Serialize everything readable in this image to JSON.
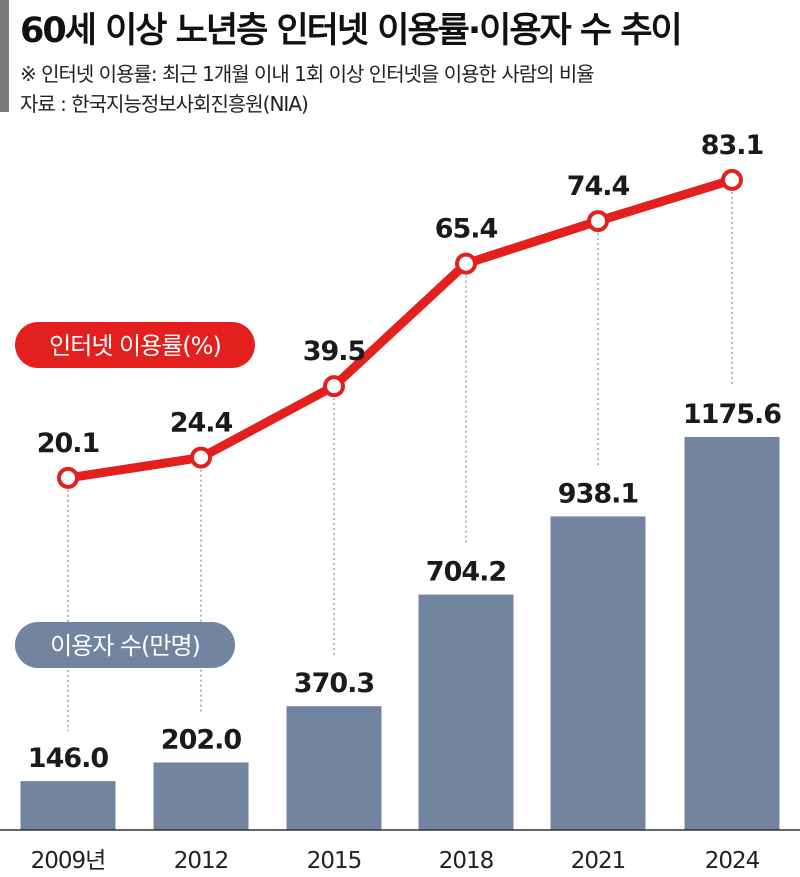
{
  "header": {
    "title": "60세 이상 노년층 인터넷 이용률·이용자 수 추이",
    "note": "※ 인터넷 이용률: 최근 1개월 이내 1회 이상 인터넷을 이용한 사람의 비율",
    "source": "자료 : 한국지능정보사회진흥원(NIA)"
  },
  "chart_data": {
    "type": "bar+line",
    "categories": [
      "2009년",
      "2012",
      "2015",
      "2018",
      "2021",
      "2024"
    ],
    "series": [
      {
        "name": "인터넷 이용률(%)",
        "type": "line",
        "color": "#e4201f",
        "values": [
          20.1,
          24.4,
          39.5,
          65.4,
          74.4,
          83.1
        ],
        "labels": [
          "20.1",
          "24.4",
          "39.5",
          "65.4",
          "74.4",
          "83.1"
        ]
      },
      {
        "name": "이용자 수(만명)",
        "type": "bar",
        "color": "#7284a0",
        "values": [
          146.0,
          202.0,
          370.3,
          704.2,
          938.1,
          1175.6
        ],
        "labels": [
          "146.0",
          "202.0",
          "370.3",
          "704.2",
          "938.1",
          "1175.6"
        ]
      }
    ],
    "grid": false,
    "axis_y_visible": false
  }
}
